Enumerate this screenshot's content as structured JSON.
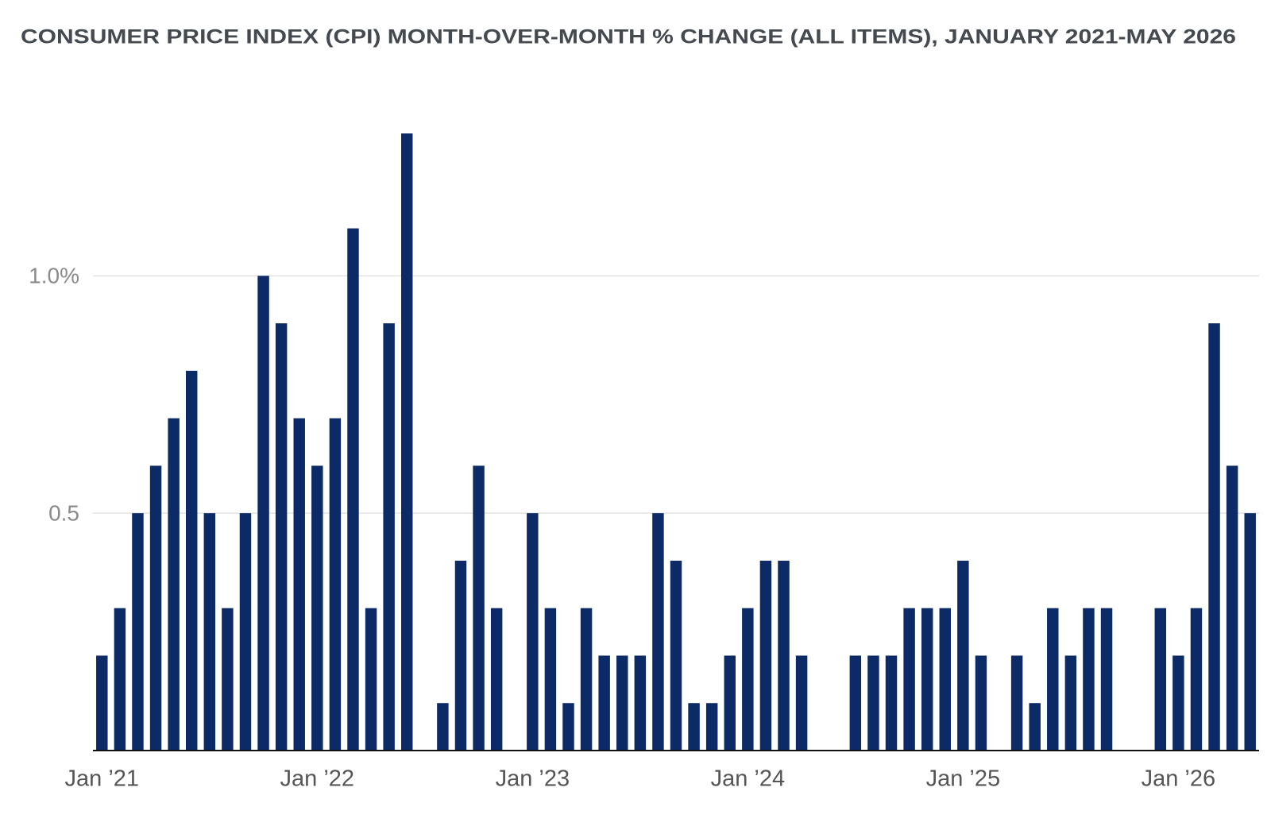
{
  "chart_data": {
    "type": "bar",
    "title": "CONSUMER PRICE INDEX (CPI) MONTH-OVER-MONTH % CHANGE (ALL ITEMS), JANUARY 2021-MAY 2026",
    "categories": [
      "Jan ’21",
      null,
      null,
      null,
      null,
      null,
      null,
      null,
      null,
      null,
      null,
      null,
      "Jan ’22",
      null,
      null,
      null,
      null,
      null,
      null,
      null,
      null,
      null,
      null,
      null,
      "Jan ’23",
      null,
      null,
      null,
      null,
      null,
      null,
      null,
      null,
      null,
      null,
      null,
      "Jan ’24",
      null,
      null,
      null,
      null,
      null,
      null,
      null,
      null,
      null,
      null,
      null,
      "Jan ’25",
      null,
      null,
      null,
      null,
      null,
      null,
      null,
      null,
      null,
      null,
      null,
      "Jan ’26",
      null,
      null,
      null,
      null
    ],
    "values": [
      0.2,
      0.3,
      0.5,
      0.6,
      0.7,
      0.8,
      0.5,
      0.3,
      0.5,
      1.0,
      0.9,
      0.7,
      0.6,
      0.7,
      1.1,
      0.3,
      0.9,
      1.3,
      0,
      0.1,
      0.4,
      0.6,
      0.3,
      0,
      0.5,
      0.3,
      0.1,
      0.3,
      0.2,
      0.2,
      0.2,
      0.5,
      0.4,
      0.1,
      0.1,
      0.2,
      0.3,
      0.4,
      0.4,
      0.2,
      0,
      0,
      0.2,
      0.2,
      0.2,
      0.3,
      0.3,
      0.3,
      0.4,
      0.2,
      0,
      0.2,
      0.1,
      0.3,
      0.2,
      0.3,
      0.3,
      0,
      0,
      0.3,
      0.2,
      0.3,
      0.9,
      0.6,
      0.5
    ],
    "color": "#0b2a66",
    "ylim": [
      0,
      1.3
    ],
    "yticks": [
      0.5,
      {
        "value": 1,
        "label": "1.0%"
      }
    ],
    "grid": true
  }
}
